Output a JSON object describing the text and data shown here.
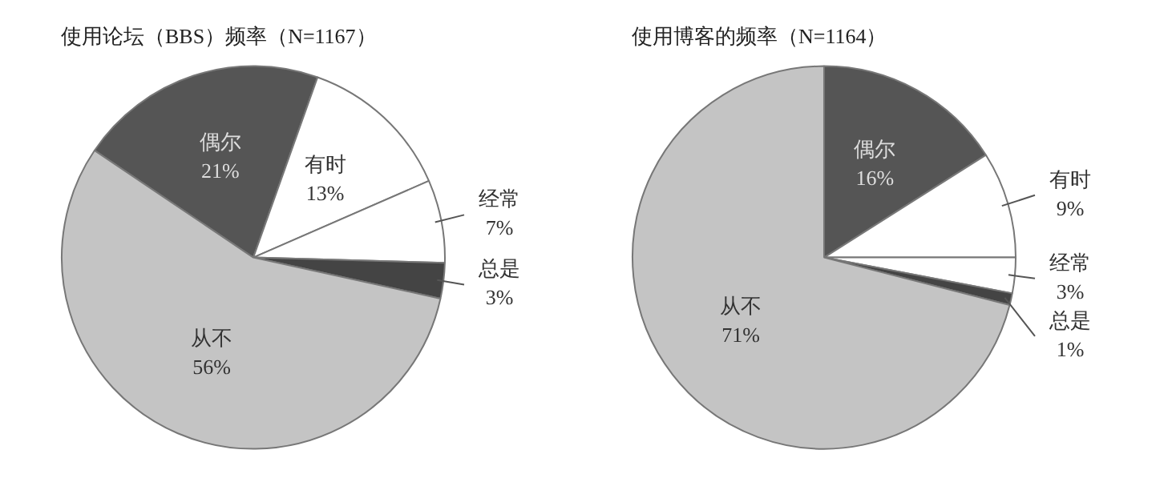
{
  "chart_data": [
    {
      "type": "pie",
      "title": "使用论坛（BBS）频率（N=1167）",
      "categories": [
        "偶尔",
        "有时",
        "经常",
        "总是",
        "从不"
      ],
      "values": [
        21,
        13,
        7,
        3,
        56
      ],
      "colors": [
        "#555555",
        "#ffffff",
        "#ffffff",
        "#444444",
        "#c4c4c4"
      ],
      "value_labels": [
        "21%",
        "13%",
        "7%",
        "3%",
        "56%"
      ],
      "legend": false
    },
    {
      "type": "pie",
      "title": "使用博客的频率（N=1164）",
      "categories": [
        "偶尔",
        "有时",
        "经常",
        "总是",
        "从不"
      ],
      "values": [
        16,
        9,
        3,
        1,
        71
      ],
      "colors": [
        "#555555",
        "#ffffff",
        "#ffffff",
        "#444444",
        "#c4c4c4"
      ],
      "value_labels": [
        "16%",
        "9%",
        "3%",
        "1%",
        "71%"
      ],
      "legend": false
    }
  ]
}
